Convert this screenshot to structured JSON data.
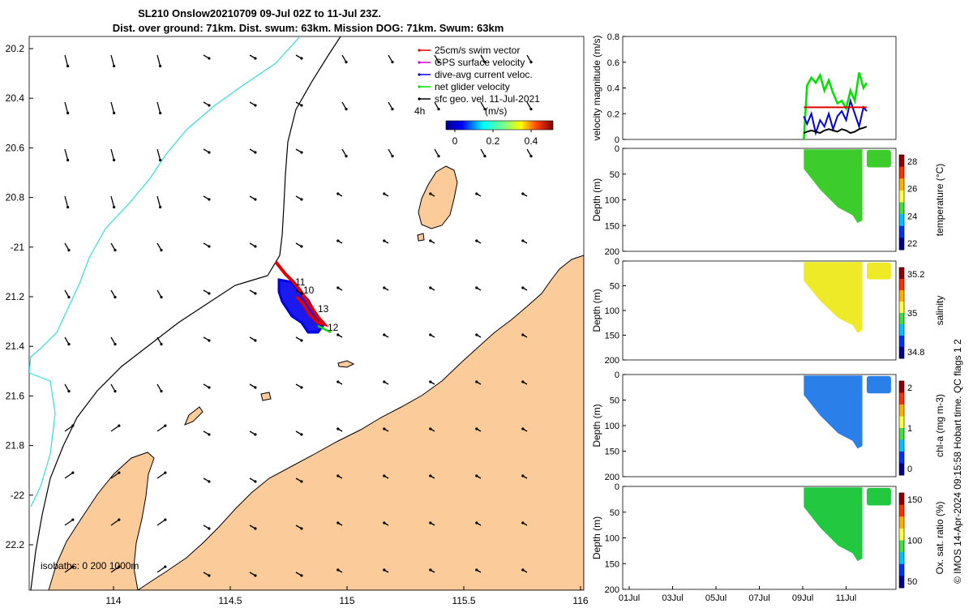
{
  "map": {
    "title_line1": "SL210 Onslow20210709 09-Jul 02Z to 11-Jul 23Z.",
    "title_line2": "Dist. over ground: 71km. Dist. swum: 63km. Mission DOG: 71km. Swum: 63km",
    "lat_ticks": [
      "20.2",
      "20.4",
      "20.6",
      "20.8",
      "-21",
      "21.2",
      "21.4",
      "21.6",
      "21.8",
      "-22",
      "22.2"
    ],
    "lon_ticks": [
      "114",
      "114.5",
      "115",
      "115.5",
      "116"
    ],
    "isobaths_label": "isobaths: 0   200  1000m",
    "legend": [
      {
        "label": "25cm/s swim vector",
        "color": "#e00000"
      },
      {
        "label": "GPS surface velocity",
        "color": "#d000d0"
      },
      {
        "label": "dive-avg current veloc.",
        "color": "#0000e0"
      },
      {
        "label": "net glider velocity",
        "color": "#00e000"
      },
      {
        "label": "sfc geo. vel. 11-Jul-2021",
        "color": "#000000"
      }
    ],
    "legend_extra": "4h",
    "colorbar": {
      "unit": "(m/s)",
      "ticks": [
        "0",
        "0.2",
        "0.4"
      ]
    },
    "track_labels": [
      "11",
      "10",
      "13",
      "12"
    ],
    "colors": {
      "land": "#fbcb9a",
      "coast": "#000000",
      "isobath_200": "#000000",
      "isobath_1000": "#33dddd"
    }
  },
  "chart_data": [
    {
      "type": "line",
      "ylabel": "velocity magnitude (m/s)",
      "ylim": [
        0,
        0.8
      ],
      "yticks": [
        "0",
        "0.2",
        "0.4",
        "0.6",
        "0.8"
      ],
      "xticks": [
        "01Jul",
        "03Jul",
        "05Jul",
        "07Jul",
        "09Jul",
        "11Jul"
      ],
      "x_days": [
        9.05,
        9.2,
        9.4,
        9.6,
        9.8,
        10.0,
        10.2,
        10.4,
        10.6,
        10.8,
        11.0,
        11.2,
        11.4,
        11.6,
        11.8,
        11.95
      ],
      "series": [
        {
          "color": "#00e000",
          "values": [
            0.0,
            0.42,
            0.48,
            0.44,
            0.5,
            0.38,
            0.46,
            0.36,
            0.28,
            0.3,
            0.24,
            0.38,
            0.3,
            0.52,
            0.4,
            0.44
          ]
        },
        {
          "color": "#0000e0",
          "values": [
            0.18,
            0.12,
            0.2,
            0.05,
            0.15,
            0.1,
            0.2,
            0.08,
            0.18,
            0.22,
            0.15,
            0.3,
            0.2,
            0.1,
            0.25,
            0.22
          ]
        },
        {
          "color": "#000000",
          "values": [
            0.05,
            0.06,
            0.07,
            0.06,
            0.05,
            0.07,
            0.08,
            0.07,
            0.06,
            0.08,
            0.07,
            0.05,
            0.06,
            0.08,
            0.09,
            0.1
          ]
        },
        {
          "color": "#e00000",
          "values": [
            0.25,
            0.25,
            0.25,
            0.25,
            0.25,
            0.25,
            0.25,
            0.25,
            0.25,
            0.25,
            0.25,
            0.25,
            0.25,
            0.25,
            0.25,
            0.25
          ]
        }
      ]
    },
    {
      "type": "heatmap",
      "ylabel": "Depth (m)",
      "ylim": [
        0,
        200
      ],
      "yticks": [
        "0",
        "50",
        "100",
        "150",
        "200"
      ],
      "colorbar_label": "temperature (°C)",
      "colorbar_ticks": [
        "28",
        "26",
        "24",
        "22"
      ],
      "color": "#3ccc2c"
    },
    {
      "type": "heatmap",
      "ylabel": "Depth (m)",
      "ylim": [
        0,
        200
      ],
      "yticks": [
        "0",
        "50",
        "100",
        "150",
        "200"
      ],
      "colorbar_label": "salinity",
      "colorbar_ticks": [
        "35.2",
        "35",
        "34.8"
      ],
      "color": "#eeea28"
    },
    {
      "type": "heatmap",
      "ylabel": "Depth (m)",
      "ylim": [
        0,
        200
      ],
      "yticks": [
        "0",
        "50",
        "100",
        "150",
        "200"
      ],
      "colorbar_label": "chl-a (mg m-3)",
      "colorbar_ticks": [
        "2",
        "1",
        "0"
      ],
      "color": "#2a80e8"
    },
    {
      "type": "heatmap",
      "ylabel": "Depth (m)",
      "ylim": [
        0,
        200
      ],
      "yticks": [
        "0",
        "50",
        "100",
        "150",
        "200"
      ],
      "colorbar_label": "Ox. sat. ratio (%)",
      "colorbar_ticks": [
        "150",
        "100",
        "50"
      ],
      "color": "#22c840"
    }
  ],
  "credit": "© IMOS 14-Apr-2024 09:15:58 Hobart time. QC flags 1  2"
}
